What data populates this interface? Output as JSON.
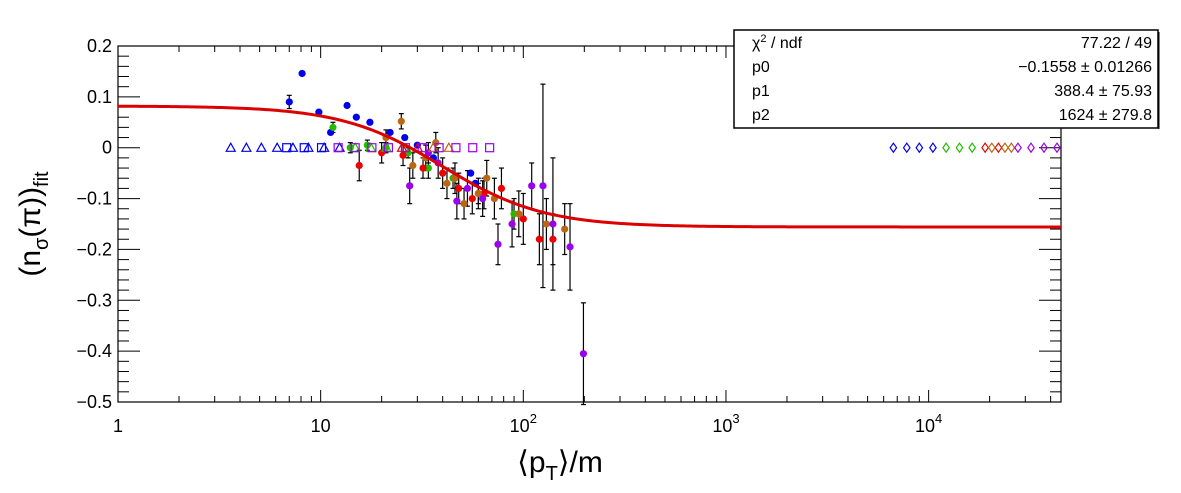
{
  "chart_data": {
    "type": "scatter",
    "title": "",
    "xlabel": "⟨p_T⟩/m",
    "ylabel": "(n_σ(π))_fit",
    "x_scale": "log",
    "xlim": [
      1,
      45000
    ],
    "ylim": [
      -0.5,
      0.2
    ],
    "grid": false,
    "x_ticks": [
      {
        "value": 1,
        "base": "1",
        "exp": ""
      },
      {
        "value": 10,
        "base": "10",
        "exp": ""
      },
      {
        "value": 100,
        "base": "10",
        "exp": "2"
      },
      {
        "value": 1000,
        "base": "10",
        "exp": "3"
      },
      {
        "value": 10000,
        "base": "10",
        "exp": "4"
      }
    ],
    "y_ticks": [
      {
        "value": 0.2,
        "label": "0.2"
      },
      {
        "value": 0.1,
        "label": "0.1"
      },
      {
        "value": 0,
        "label": "0"
      },
      {
        "value": -0.1,
        "label": "−0.1"
      },
      {
        "value": -0.2,
        "label": "−0.2"
      },
      {
        "value": -0.3,
        "label": "−0.3"
      },
      {
        "value": -0.4,
        "label": "−0.4"
      },
      {
        "value": -0.5,
        "label": "−0.5"
      }
    ],
    "fit_curve": {
      "color": "#dd0000",
      "p0": -0.1558,
      "p1": 388.4,
      "p2": 1624,
      "plateau_high": 0.082,
      "midpoint_x": 40,
      "width_decades": 0.25
    },
    "stats_box": {
      "rows": [
        {
          "label_main": "χ",
          "label_sup": "2",
          "label_rest": " / ndf",
          "value": "77.22 / 49"
        },
        {
          "label_main": "p0",
          "label_sup": "",
          "label_rest": "",
          "value": "−0.1558 ± 0.01266"
        },
        {
          "label_main": "p1",
          "label_sup": "",
          "label_rest": "",
          "value": "388.4 ± 75.93"
        },
        {
          "label_main": "p2",
          "label_sup": "",
          "label_rest": "",
          "value": "1624 ± 279.8"
        }
      ]
    },
    "series": [
      {
        "marker": "dot",
        "color": "#0000ee",
        "points": [
          {
            "x": 7.0,
            "y": 0.09,
            "err": 0.013
          },
          {
            "x": 8.1,
            "y": 0.146,
            "err": 0
          },
          {
            "x": 9.8,
            "y": 0.07,
            "err": 0
          },
          {
            "x": 11.2,
            "y": 0.03,
            "err": 0
          },
          {
            "x": 13.5,
            "y": 0.083,
            "err": 0
          },
          {
            "x": 15.0,
            "y": 0.06,
            "err": 0
          },
          {
            "x": 17.5,
            "y": 0.05,
            "err": 0
          },
          {
            "x": 22.0,
            "y": 0.03,
            "err": 0
          },
          {
            "x": 26.0,
            "y": 0.02,
            "err": 0
          },
          {
            "x": 30.0,
            "y": 0.005,
            "err": 0
          },
          {
            "x": 36.0,
            "y": -0.02,
            "err": 0
          },
          {
            "x": 55.0,
            "y": -0.05,
            "err": 0
          },
          {
            "x": 58.0,
            "y": -0.07,
            "err": 0
          }
        ]
      },
      {
        "marker": "dot",
        "color": "#22bb00",
        "points": [
          {
            "x": 11.5,
            "y": 0.04,
            "err": 0.01
          },
          {
            "x": 14.0,
            "y": 0.0,
            "err": 0.01
          },
          {
            "x": 17.0,
            "y": 0.005,
            "err": 0.01
          },
          {
            "x": 21.0,
            "y": 0.0,
            "err": 0.01
          },
          {
            "x": 27.0,
            "y": -0.01,
            "err": 0.01
          },
          {
            "x": 34.0,
            "y": -0.04,
            "err": 0.02
          },
          {
            "x": 45.0,
            "y": -0.06,
            "err": 0.02
          },
          {
            "x": 60.0,
            "y": -0.09,
            "err": 0.02
          },
          {
            "x": 90.0,
            "y": -0.13,
            "err": 0.03
          }
        ]
      },
      {
        "marker": "dot",
        "color": "#ee0000",
        "points": [
          {
            "x": 15.5,
            "y": -0.035,
            "err": 0.03
          },
          {
            "x": 20.0,
            "y": -0.01,
            "err": 0.02
          },
          {
            "x": 25.5,
            "y": -0.015,
            "err": 0.02
          },
          {
            "x": 32.0,
            "y": -0.04,
            "err": 0.02
          },
          {
            "x": 40.0,
            "y": -0.05,
            "err": 0.03
          },
          {
            "x": 48.0,
            "y": -0.08,
            "err": 0.03
          },
          {
            "x": 56.0,
            "y": -0.1,
            "err": 0.03
          },
          {
            "x": 64.0,
            "y": -0.09,
            "err": 0.03
          },
          {
            "x": 78.0,
            "y": -0.08,
            "err": 0.04
          },
          {
            "x": 100.0,
            "y": -0.14,
            "err": 0.05
          },
          {
            "x": 120.0,
            "y": -0.18,
            "err": 0.05
          },
          {
            "x": 140.0,
            "y": -0.18,
            "err": 0.05
          }
        ]
      },
      {
        "marker": "dot",
        "color": "#bb6611",
        "points": [
          {
            "x": 21.0,
            "y": 0.02,
            "err": 0.015
          },
          {
            "x": 25.0,
            "y": 0.052,
            "err": 0.015
          },
          {
            "x": 28.5,
            "y": -0.035,
            "err": 0.025
          },
          {
            "x": 33.0,
            "y": -0.02,
            "err": 0.025
          },
          {
            "x": 37.0,
            "y": 0.01,
            "err": 0.02
          },
          {
            "x": 42.0,
            "y": -0.07,
            "err": 0.03
          },
          {
            "x": 46.0,
            "y": -0.06,
            "err": 0.03
          },
          {
            "x": 51.0,
            "y": -0.11,
            "err": 0.03
          },
          {
            "x": 60.0,
            "y": -0.09,
            "err": 0.03
          },
          {
            "x": 66.0,
            "y": -0.06,
            "err": 0.035
          },
          {
            "x": 72.0,
            "y": -0.1,
            "err": 0.04
          },
          {
            "x": 95.0,
            "y": -0.13,
            "err": 0.045
          },
          {
            "x": 130.0,
            "y": -0.15,
            "err": 0.05
          },
          {
            "x": 160.0,
            "y": -0.16,
            "err": 0.05
          }
        ]
      },
      {
        "marker": "dot",
        "color": "#9900ee",
        "points": [
          {
            "x": 27.5,
            "y": -0.075,
            "err": 0.035
          },
          {
            "x": 34.0,
            "y": -0.01,
            "err": 0.02
          },
          {
            "x": 38.0,
            "y": -0.03,
            "err": 0.03
          },
          {
            "x": 47.0,
            "y": -0.105,
            "err": 0.035
          },
          {
            "x": 53.0,
            "y": -0.08,
            "err": 0.035
          },
          {
            "x": 63.0,
            "y": -0.1,
            "err": 0.035
          },
          {
            "x": 75.0,
            "y": -0.19,
            "err": 0.04
          },
          {
            "x": 88.0,
            "y": -0.15,
            "err": 0.045
          },
          {
            "x": 110.0,
            "y": -0.075,
            "err": 0.045
          },
          {
            "x": 125.0,
            "y": -0.075,
            "err": 0.2
          },
          {
            "x": 140.0,
            "y": -0.15,
            "err": 0.13
          },
          {
            "x": 170.0,
            "y": -0.195,
            "err": 0.085
          },
          {
            "x": 198.0,
            "y": -0.405,
            "err": 0.1
          }
        ]
      },
      {
        "marker": "triangle",
        "color": "#0000ee",
        "points": [
          {
            "x": 3.6,
            "y": 0
          },
          {
            "x": 4.3,
            "y": 0
          },
          {
            "x": 5.1,
            "y": 0
          },
          {
            "x": 6.1,
            "y": 0
          },
          {
            "x": 7.3,
            "y": 0
          },
          {
            "x": 8.7,
            "y": 0
          },
          {
            "x": 10.4,
            "y": 0
          },
          {
            "x": 12.4,
            "y": 0
          }
        ]
      },
      {
        "marker": "triangle",
        "color": "#22bb00",
        "points": [
          {
            "x": 14.8,
            "y": 0
          },
          {
            "x": 17.7,
            "y": 0
          },
          {
            "x": 21.1,
            "y": 0
          }
        ]
      },
      {
        "marker": "triangle",
        "color": "#ee0000",
        "points": [
          {
            "x": 25.2,
            "y": 0
          },
          {
            "x": 30.1,
            "y": 0
          }
        ]
      },
      {
        "marker": "triangle",
        "color": "#bb6611",
        "points": [
          {
            "x": 35.9,
            "y": 0
          },
          {
            "x": 42.9,
            "y": 0
          }
        ]
      },
      {
        "marker": "square",
        "color": "#0000ee",
        "points": [
          {
            "x": 6.8,
            "y": 0
          },
          {
            "x": 8.3,
            "y": 0
          },
          {
            "x": 10.1,
            "y": 0
          }
        ]
      },
      {
        "marker": "square",
        "color": "#9900ee",
        "points": [
          {
            "x": 12.2,
            "y": 0
          },
          {
            "x": 14.8,
            "y": 0
          },
          {
            "x": 17.9,
            "y": 0
          },
          {
            "x": 21.6,
            "y": 0
          },
          {
            "x": 26.2,
            "y": 0
          },
          {
            "x": 31.7,
            "y": 0
          },
          {
            "x": 38.4,
            "y": 0
          },
          {
            "x": 46.5,
            "y": 0
          },
          {
            "x": 56.3,
            "y": 0
          },
          {
            "x": 68.2,
            "y": 0
          }
        ]
      },
      {
        "marker": "diamond",
        "color": "#0000ee",
        "points": [
          {
            "x": 6700,
            "y": 0
          },
          {
            "x": 7800,
            "y": 0
          },
          {
            "x": 9000,
            "y": 0
          },
          {
            "x": 10500,
            "y": 0
          }
        ]
      },
      {
        "marker": "diamond",
        "color": "#22bb00",
        "points": [
          {
            "x": 12200,
            "y": 0
          },
          {
            "x": 14200,
            "y": 0
          },
          {
            "x": 16400,
            "y": 0
          }
        ]
      },
      {
        "marker": "diamond",
        "color": "#ee0000",
        "points": [
          {
            "x": 19000,
            "y": 0
          },
          {
            "x": 22100,
            "y": 0
          }
        ]
      },
      {
        "marker": "diamond",
        "color": "#bb6611",
        "points": [
          {
            "x": 20500,
            "y": 0
          },
          {
            "x": 23800,
            "y": 0
          },
          {
            "x": 25600,
            "y": 0
          }
        ]
      },
      {
        "marker": "diamond",
        "color": "#9900ee",
        "points": [
          {
            "x": 27600,
            "y": 0
          },
          {
            "x": 32000,
            "y": 0
          },
          {
            "x": 37100,
            "y": 0
          },
          {
            "x": 43000,
            "y": 0
          }
        ]
      }
    ]
  }
}
